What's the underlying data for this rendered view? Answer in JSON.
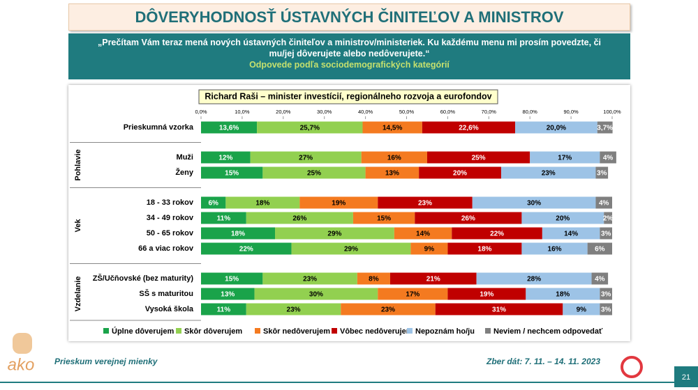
{
  "header": {
    "title": "DÔVERYHODNOSŤ ÚSTAVNÝCH ČINITEĽOV A MINISTROV"
  },
  "intro": {
    "question": "„Prečítam Vám teraz mená nových ústavných činiteľov a ministrov/ministeriek. Ku každému menu mi prosím povedzte, či mu/jej dôverujete alebo nedôverujete.“",
    "subtitle": "Odpovede podľa sociodemografických kategórií"
  },
  "chart_data": {
    "type": "stacked_bar",
    "title": "Richard Raši – minister investícií, regionálneho rozvoja a eurofondov",
    "category_groups": [
      {
        "label": null,
        "categories": [
          "Prieskumná vzorka"
        ]
      },
      {
        "label": "Pohlavie",
        "categories": [
          "Muži",
          "Ženy"
        ]
      },
      {
        "label": "Vek",
        "categories": [
          "18 - 33 rokov",
          "34 - 49 rokov",
          "50 - 65 rokov",
          "66 a viac rokov"
        ]
      },
      {
        "label": "Vzdelanie",
        "categories": [
          "ZŠ/Učňovské (bez maturity)",
          "SŠ s maturitou",
          "Vysoká škola"
        ]
      }
    ],
    "series": [
      {
        "name": "Úplne dôverujem",
        "color": "#1aa34a",
        "values": [
          13.6,
          12,
          15,
          6,
          11,
          18,
          22,
          15,
          13,
          11
        ],
        "value_labels": [
          "13,6%",
          "12%",
          "15%",
          "6%",
          "11%",
          "18%",
          "22%",
          "15%",
          "13%",
          "11%"
        ]
      },
      {
        "name": "Skôr dôverujem",
        "color": "#92d050",
        "values": [
          25.7,
          27,
          25,
          18,
          26,
          29,
          29,
          23,
          30,
          23
        ],
        "value_labels": [
          "25,7%",
          "27%",
          "25%",
          "18%",
          "26%",
          "29%",
          "29%",
          "23%",
          "30%",
          "23%"
        ]
      },
      {
        "name": "Skôr nedôverujem",
        "color": "#f47a20",
        "values": [
          14.5,
          16,
          13,
          19,
          15,
          14,
          9,
          8,
          17,
          23
        ],
        "value_labels": [
          "14,5%",
          "16%",
          "13%",
          "19%",
          "15%",
          "14%",
          "9%",
          "8%",
          "17%",
          "23%"
        ]
      },
      {
        "name": "Vôbec nedôverujem",
        "color": "#c00000",
        "values": [
          22.6,
          25,
          20,
          23,
          26,
          22,
          18,
          21,
          19,
          31
        ],
        "value_labels": [
          "22,6%",
          "25%",
          "20%",
          "23%",
          "26%",
          "22%",
          "18%",
          "21%",
          "19%",
          "31%"
        ]
      },
      {
        "name": "Nepoznám ho/ju",
        "color": "#9dc3e6",
        "values": [
          20.0,
          17,
          23,
          30,
          20,
          14,
          16,
          28,
          18,
          9
        ],
        "value_labels": [
          "20,0%",
          "17%",
          "23%",
          "30%",
          "20%",
          "14%",
          "16%",
          "28%",
          "18%",
          "9%"
        ]
      },
      {
        "name": "Neviem / nechcem odpovedať",
        "color": "#7f7f7f",
        "values": [
          3.7,
          4,
          3,
          4,
          2,
          3,
          6,
          4,
          3,
          3
        ],
        "value_labels": [
          "3,7%",
          "4%",
          "3%",
          "4%",
          "2%",
          "3%",
          "6%",
          "4%",
          "3%",
          "3%"
        ]
      }
    ],
    "xlim": [
      0,
      100
    ],
    "xticks": [
      {
        "value": 0,
        "label": "0,0%"
      },
      {
        "value": 10,
        "label": "10,0%"
      },
      {
        "value": 20,
        "label": "20,0%"
      },
      {
        "value": 30,
        "label": "30,0%"
      },
      {
        "value": 40,
        "label": "40,0%"
      },
      {
        "value": 50,
        "label": "50,0%"
      },
      {
        "value": 60,
        "label": "60,0%"
      },
      {
        "value": 70,
        "label": "70,0%"
      },
      {
        "value": 80,
        "label": "80,0%"
      },
      {
        "value": 90,
        "label": "90,0%"
      },
      {
        "value": 100,
        "label": "100,0%"
      }
    ]
  },
  "footer": {
    "survey": "Prieskum verejnej mienky",
    "dates": "Zber dát: 7. 11. – 14. 11. 2023",
    "page": "21"
  },
  "logo": {
    "name": "ako"
  }
}
